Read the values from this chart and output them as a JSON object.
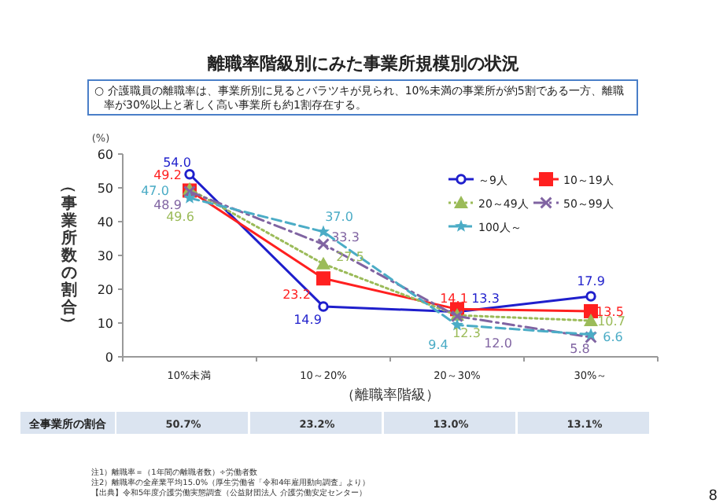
{
  "chart_data": {
    "type": "line",
    "title": "離職率階級別にみた事業所規模別の状況",
    "subtitle": "○  介護職員の離職率は、事業所別に見るとバラツキが見られ、10%未満の事業所が約5割である一方、離職率が30%以上と著しく高い事業所も約1割存在する。",
    "xlabel": "（離職率階級）",
    "ylabel": "（事業所数の割合）",
    "categories": [
      "10%未満",
      "10～20%",
      "20～30%",
      "30%～"
    ],
    "ylim": [
      0,
      60
    ],
    "yticks": [
      0,
      10,
      20,
      30,
      40,
      50,
      60
    ],
    "grid": false,
    "legend": "top right",
    "series": [
      {
        "name": "～9人",
        "color": "#1f1fcc",
        "marker": "circle",
        "line_style": "solid",
        "values": [
          54.0,
          14.9,
          13.3,
          17.9
        ],
        "value_labels": [
          "54.0",
          "14.9",
          "13.3",
          "17.9"
        ]
      },
      {
        "name": "10～19人",
        "color": "#ff2020",
        "marker": "square",
        "line_style": "solid",
        "values": [
          49.2,
          23.2,
          14.1,
          13.5
        ],
        "value_labels": [
          "49.2",
          "23.2",
          "14.1",
          "13.5"
        ]
      },
      {
        "name": "20～49人",
        "color": "#9bbb59",
        "marker": "triangle",
        "line_style": "dotted",
        "values": [
          49.6,
          27.5,
          12.3,
          10.7
        ],
        "value_labels": [
          "49.6",
          "27.5",
          "12.3",
          "10.7"
        ]
      },
      {
        "name": "50～99人",
        "color": "#8064a2",
        "marker": "cross",
        "line_style": "dashdot",
        "values": [
          48.9,
          33.3,
          12.0,
          5.8
        ],
        "value_labels": [
          "48.9",
          "33.3",
          "12.0",
          "5.8"
        ]
      },
      {
        "name": "100人～",
        "color": "#4bacc6",
        "marker": "star",
        "line_style": "dashed",
        "values": [
          47.0,
          37.0,
          9.4,
          6.6
        ],
        "value_labels": [
          "47.0",
          "37.0",
          "9.4",
          "6.6"
        ]
      }
    ],
    "annotations": [
      "(%)",
      "全事業所の割合",
      "50.7%",
      "23.2%",
      "13.0%",
      "13.1%",
      "注1）離職率＝（1年間の離職者数）÷労働者数",
      "注2）離職率の全産業平均15.0%（厚生労働省「令和4年雇用動向調査」より）",
      "【出典】令和5年度介護労働実態調査（公益財団法人 介護労働安定センター）",
      "8"
    ]
  }
}
